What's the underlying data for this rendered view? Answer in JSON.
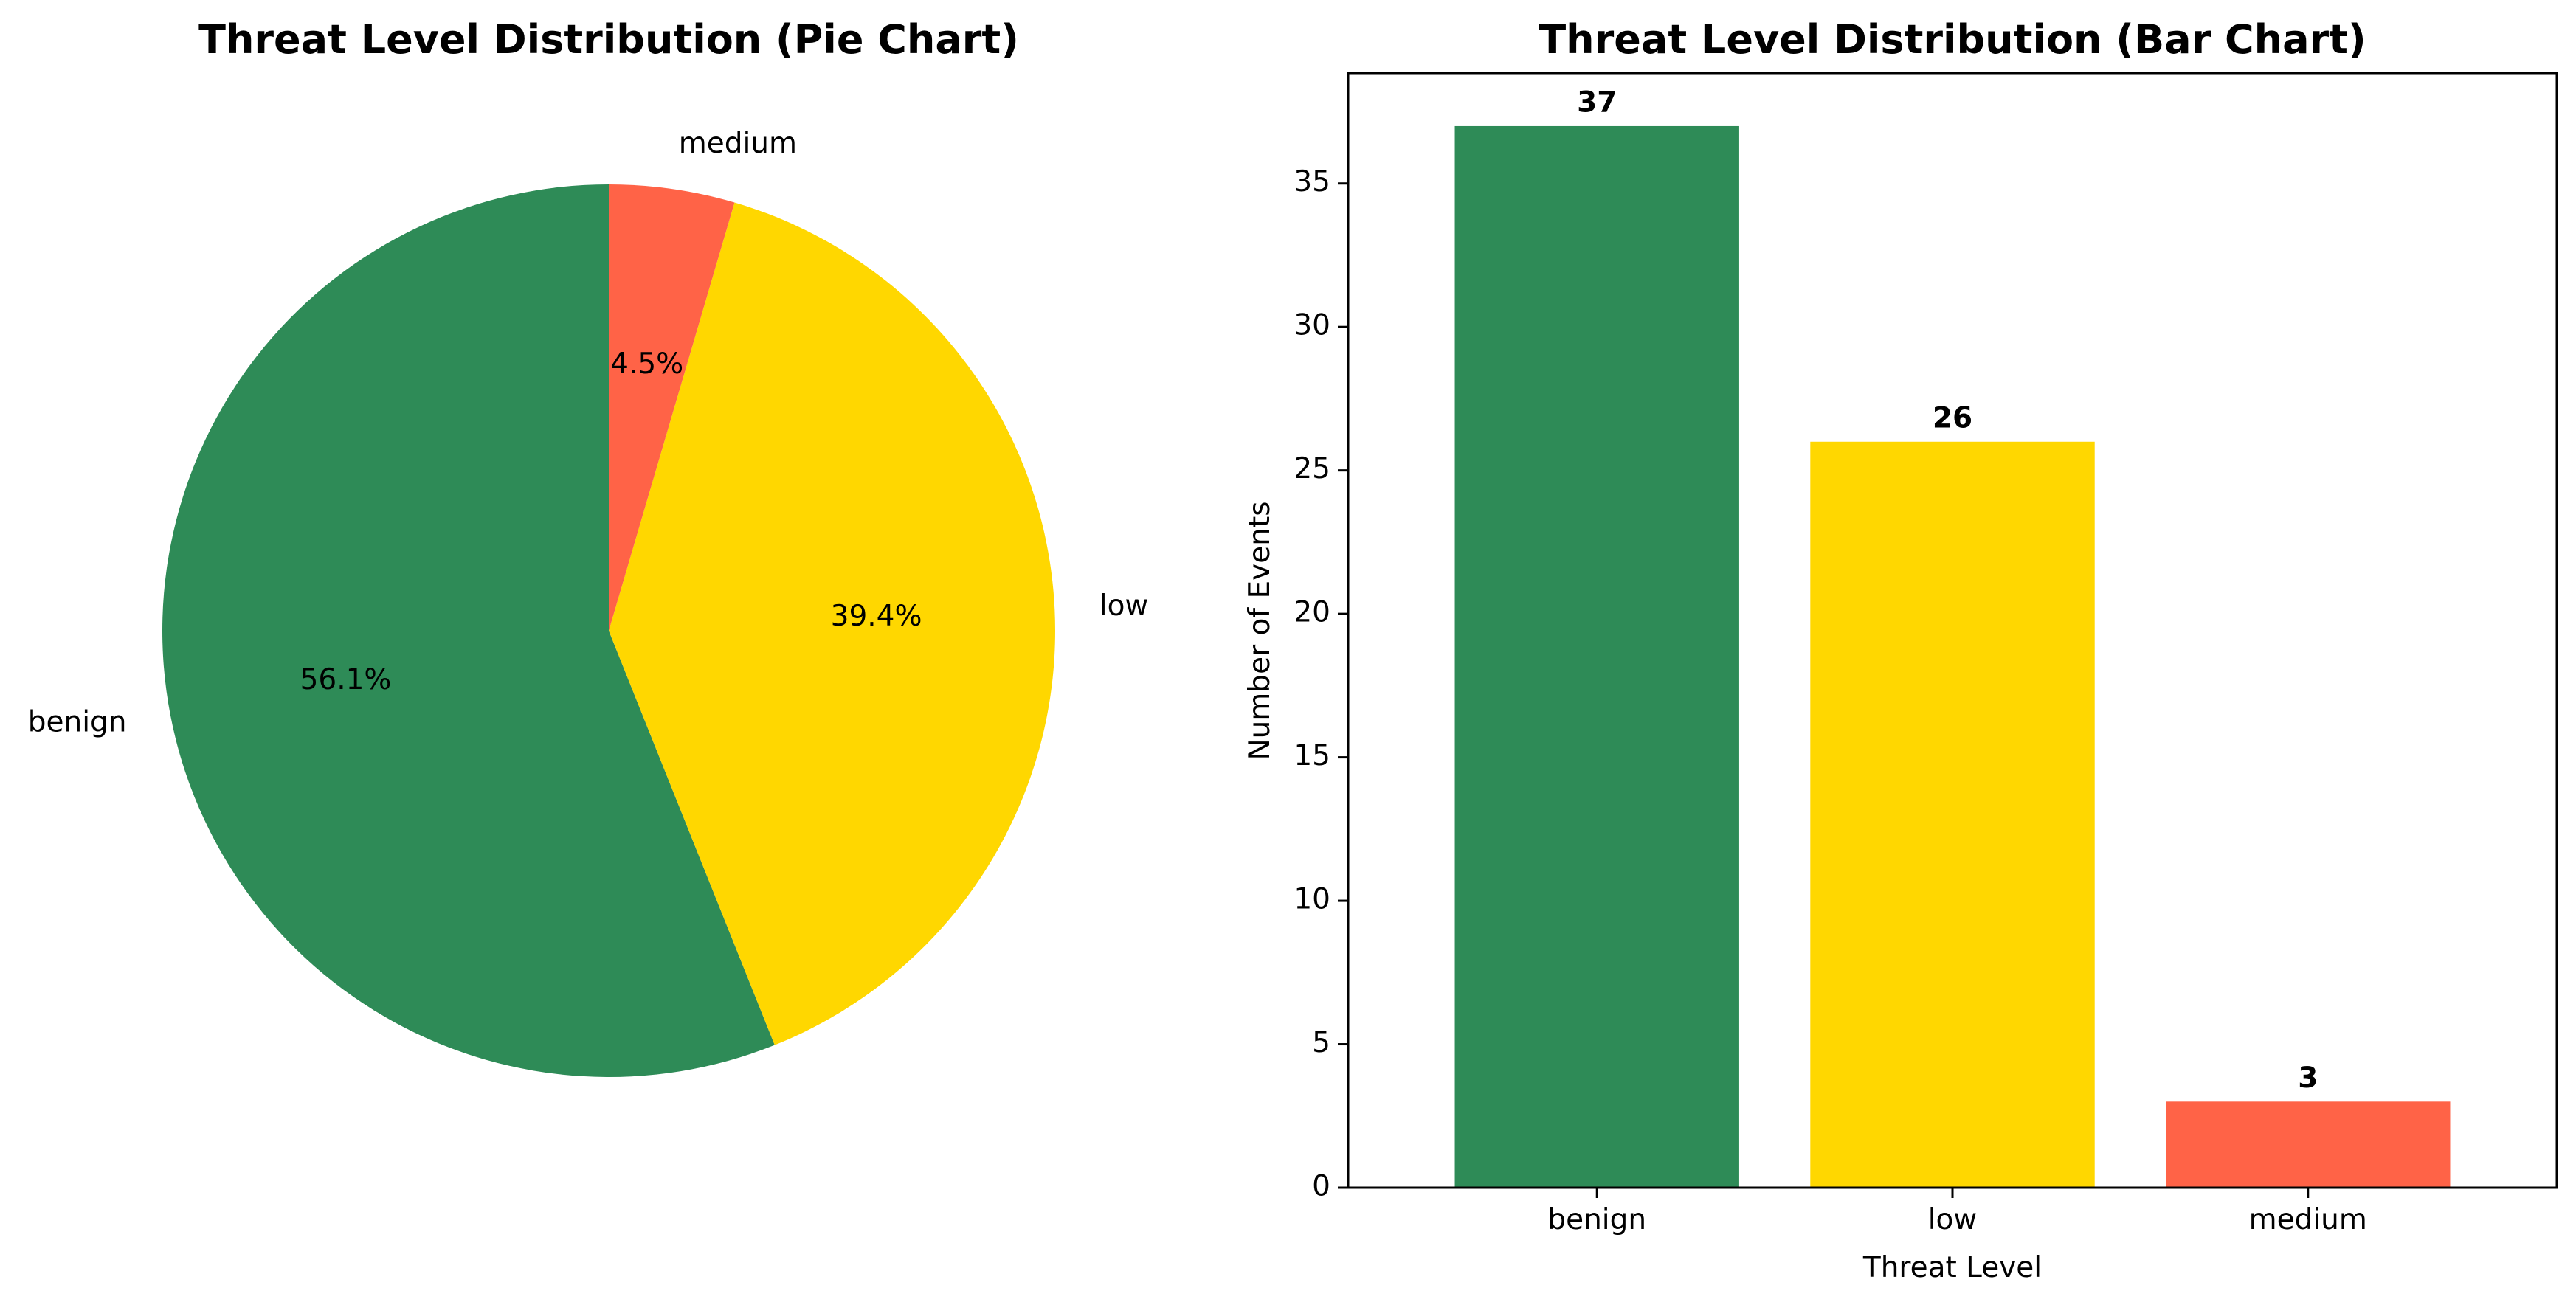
{
  "chart_data": [
    {
      "type": "pie",
      "title": "Threat Level Distribution (Pie Chart)",
      "labels": [
        "benign",
        "low",
        "medium"
      ],
      "values": [
        37,
        26,
        3
      ],
      "percent_labels": [
        "56.1%",
        "39.4%",
        "4.5%"
      ],
      "colors": [
        "#2e8b57",
        "#ffd700",
        "#ff6347"
      ],
      "start_angle_deg": 90,
      "direction": "counterclockwise"
    },
    {
      "type": "bar",
      "title": "Threat Level Distribution (Bar Chart)",
      "categories": [
        "benign",
        "low",
        "medium"
      ],
      "values": [
        37,
        26,
        3
      ],
      "value_labels": [
        "37",
        "26",
        "3"
      ],
      "colors": [
        "#2e8b57",
        "#ffd700",
        "#ff6347"
      ],
      "xlabel": "Threat Level",
      "ylabel": "Number of Events",
      "ylim": [
        0,
        38.85
      ],
      "yticks": [
        0,
        5,
        10,
        15,
        20,
        25,
        30,
        35
      ],
      "grid": false
    }
  ]
}
